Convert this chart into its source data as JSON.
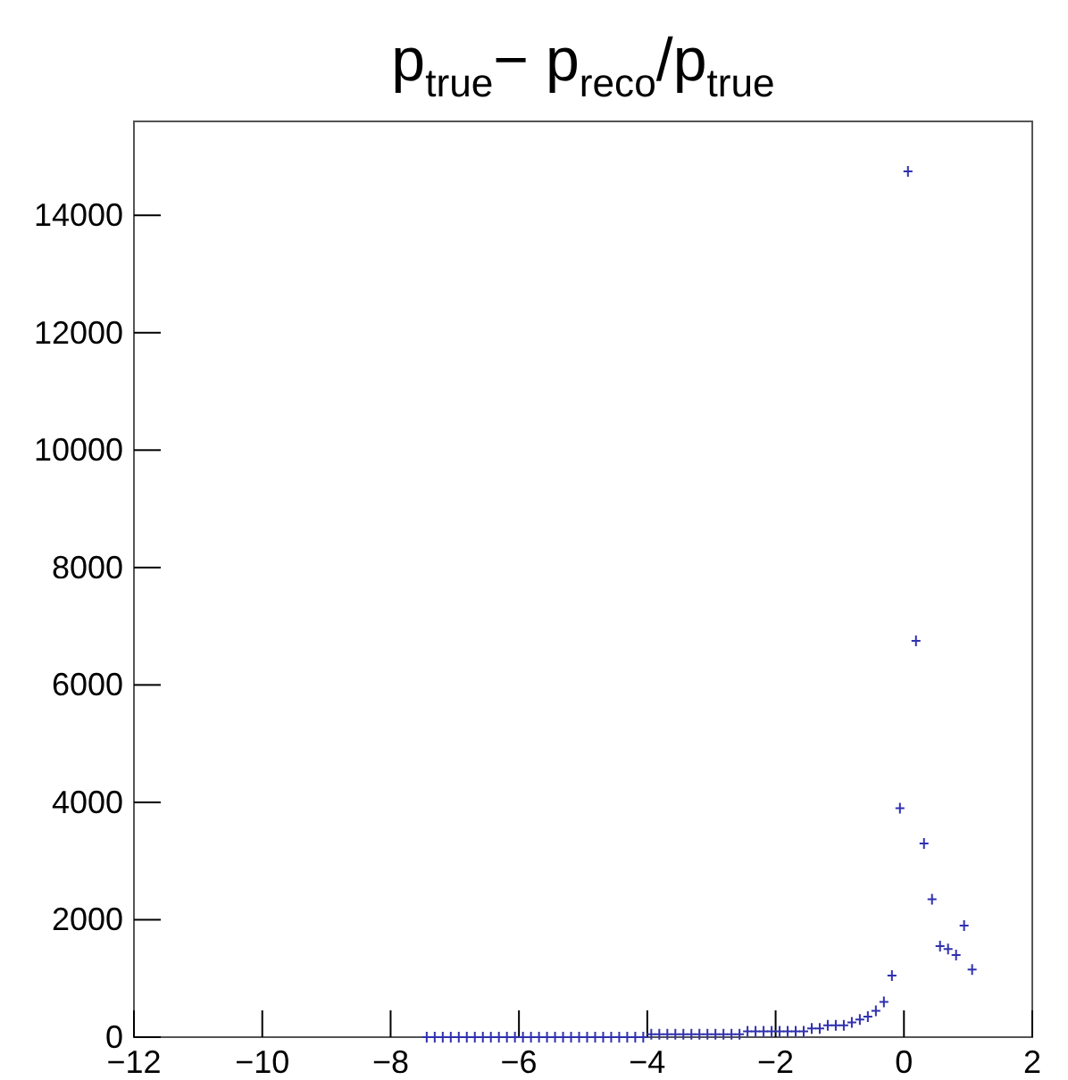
{
  "chart_data": {
    "type": "scatter",
    "title": "p$_{true}$− p$_{reco}$/p$_{true}$",
    "x": [
      -7.4375,
      -7.3125,
      -7.1875,
      -7.0625,
      -6.9375,
      -6.8125,
      -6.6875,
      -6.5625,
      -6.4375,
      -6.3125,
      -6.1875,
      -6.0625,
      -5.9375,
      -5.8125,
      -5.6875,
      -5.5625,
      -5.4375,
      -5.3125,
      -5.1875,
      -5.0625,
      -4.9375,
      -4.8125,
      -4.6875,
      -4.5625,
      -4.4375,
      -4.3125,
      -4.1875,
      -4.0625,
      -3.9375,
      -3.8125,
      -3.6875,
      -3.5625,
      -3.4375,
      -3.3125,
      -3.1875,
      -3.0625,
      -2.9375,
      -2.8125,
      -2.6875,
      -2.5625,
      -2.4375,
      -2.3125,
      -2.1875,
      -2.0625,
      -1.9375,
      -1.8125,
      -1.6875,
      -1.5625,
      -1.4375,
      -1.3125,
      -1.1875,
      -1.0625,
      -0.9375,
      -0.8125,
      -0.6875,
      -0.5625,
      -0.4375,
      -0.3125,
      -0.1875,
      -0.0625,
      0.0625,
      0.1875,
      0.3125,
      0.4375,
      0.5625,
      0.6875,
      0.8125,
      0.9375,
      1.0625
    ],
    "values": [
      0,
      0,
      0,
      0,
      0,
      0,
      0,
      0,
      0,
      0,
      0,
      0,
      0,
      0,
      0,
      0,
      0,
      0,
      0,
      0,
      0,
      0,
      0,
      0,
      0,
      0,
      0,
      0,
      50,
      50,
      50,
      50,
      50,
      50,
      50,
      50,
      50,
      50,
      50,
      50,
      100,
      100,
      100,
      100,
      100,
      100,
      100,
      100,
      150,
      150,
      200,
      200,
      200,
      250,
      300,
      350,
      450,
      600,
      1050,
      3900,
      14750,
      6750,
      3300,
      2350,
      1550,
      1500,
      1400,
      1900,
      1150
    ],
    "color": "#3030b0",
    "marker": "cross",
    "xlim": [
      -12,
      2
    ],
    "xticks": [
      -12,
      -10,
      -8,
      -6,
      -4,
      -2,
      0,
      2
    ],
    "ylim": [
      0,
      15600
    ],
    "yticks": [
      0,
      2000,
      4000,
      6000,
      8000,
      10000,
      12000,
      14000
    ],
    "grid": false
  }
}
